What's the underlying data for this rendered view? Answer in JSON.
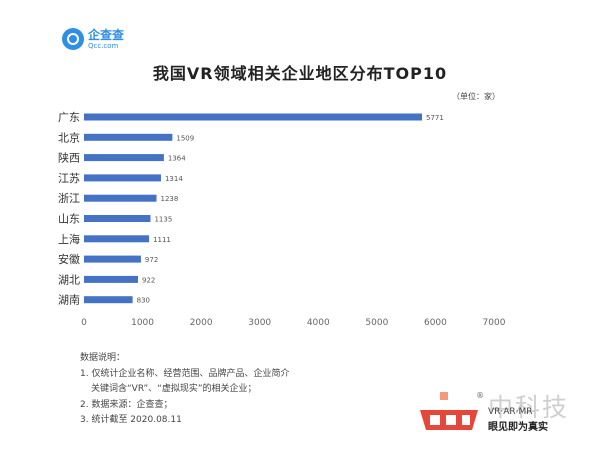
{
  "logo": {
    "name": "企查查",
    "sub": "Qcc.com"
  },
  "chart_data": {
    "type": "bar",
    "orientation": "horizontal",
    "title": "我国VR领域相关企业地区分布TOP10",
    "unit_label": "（单位：家）",
    "categories": [
      "广东",
      "北京",
      "陕西",
      "江苏",
      "浙江",
      "山东",
      "上海",
      "安徽",
      "湖北",
      "湖南"
    ],
    "values": [
      5771,
      1509,
      1364,
      1314,
      1238,
      1135,
      1111,
      972,
      922,
      830
    ],
    "xlim": [
      0,
      7000
    ],
    "xticks": [
      0,
      1000,
      2000,
      3000,
      4000,
      5000,
      6000,
      7000
    ],
    "bar_color": "#4472c4",
    "grid": false
  },
  "notes": {
    "heading": "数据说明：",
    "line1": "1. 仅统计企业名称、经营范围、品牌产品、企业简介",
    "line1b": "关键词含“VR”、“虚拟现实”的相关企业；",
    "line2": "2. 数据来源：企查查；",
    "line3": "3. 统计截至 2020.08.11"
  },
  "watermark": {
    "cn": "中科技",
    "sub1": "VR·AR·MR",
    "sub2": "眼见即为真实",
    "symbol": "®"
  }
}
